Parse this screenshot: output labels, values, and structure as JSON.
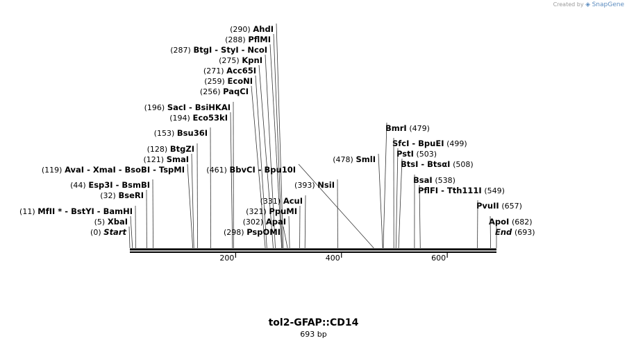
{
  "credit": {
    "prefix": "Created by",
    "brand": "SnapGene"
  },
  "title": "tol2-GFAP::CD14",
  "length_label": "693 bp",
  "sequence_length": 693,
  "axis_ticks": [
    "200",
    "400",
    "600"
  ],
  "axis_tick_values": [
    200,
    400,
    600
  ],
  "sites_left": [
    {
      "pos_label": "(290)",
      "pos": 290,
      "names": [
        "AhdI"
      ]
    },
    {
      "pos_label": "(288)",
      "pos": 288,
      "names": [
        "PflMI"
      ]
    },
    {
      "pos_label": "(287)",
      "pos": 287,
      "names": [
        "BtgI",
        "StyI",
        "NcoI"
      ]
    },
    {
      "pos_label": "(275)",
      "pos": 275,
      "names": [
        "KpnI"
      ]
    },
    {
      "pos_label": "(271)",
      "pos": 271,
      "names": [
        "Acc65I"
      ]
    },
    {
      "pos_label": "(259)",
      "pos": 259,
      "names": [
        "EcoNI"
      ]
    },
    {
      "pos_label": "(256)",
      "pos": 256,
      "names": [
        "PaqCI"
      ]
    },
    {
      "pos_label": "(196)",
      "pos": 196,
      "names": [
        "SacI",
        "BsiHKAI"
      ]
    },
    {
      "pos_label": "(194)",
      "pos": 194,
      "names": [
        "Eco53kI"
      ]
    },
    {
      "pos_label": "(153)",
      "pos": 153,
      "names": [
        "Bsu36I"
      ]
    },
    {
      "pos_label": "(128)",
      "pos": 128,
      "names": [
        "BtgZI"
      ]
    },
    {
      "pos_label": "(121)",
      "pos": 121,
      "names": [
        "SmaI"
      ]
    },
    {
      "pos_label": "(119)",
      "pos": 119,
      "names": [
        "AvaI",
        "XmaI",
        "BsoBI",
        "TspMI"
      ]
    },
    {
      "pos_label": "(44)",
      "pos": 44,
      "names": [
        "Esp3I",
        "BsmBI"
      ]
    },
    {
      "pos_label": "(32)",
      "pos": 32,
      "names": [
        "BseRI"
      ]
    },
    {
      "pos_label": "(11)",
      "pos": 11,
      "names": [
        "MfII *",
        "BstYI",
        "BamHI"
      ]
    },
    {
      "pos_label": "(5)",
      "pos": 5,
      "names": [
        "XbaI"
      ]
    },
    {
      "pos_label": "(0)",
      "pos": 0,
      "names": [
        "Start"
      ]
    },
    {
      "pos_label": "(461)",
      "pos": 461,
      "names": [
        "BbvCI",
        "Bpu10I"
      ]
    },
    {
      "pos_label": "(393)",
      "pos": 393,
      "names": [
        "NsiI"
      ]
    },
    {
      "pos_label": "(331)",
      "pos": 331,
      "names": [
        "AcuI"
      ]
    },
    {
      "pos_label": "(321)",
      "pos": 321,
      "names": [
        "PpuMI"
      ]
    },
    {
      "pos_label": "(302)",
      "pos": 302,
      "names": [
        "ApaI"
      ]
    },
    {
      "pos_label": "(298)",
      "pos": 298,
      "names": [
        "PspOMI"
      ]
    },
    {
      "pos_label": "(478)",
      "pos": 478,
      "names": [
        "SmlI"
      ]
    }
  ],
  "sites_right": [
    {
      "pos_label": "(479)",
      "pos": 479,
      "names": [
        "BmrI"
      ]
    },
    {
      "pos_label": "(499)",
      "pos": 499,
      "names": [
        "SfcI",
        "BpuEI"
      ]
    },
    {
      "pos_label": "(503)",
      "pos": 503,
      "names": [
        "PstI"
      ]
    },
    {
      "pos_label": "(508)",
      "pos": 508,
      "names": [
        "BtsI",
        "BtsαI"
      ]
    },
    {
      "pos_label": "(538)",
      "pos": 538,
      "names": [
        "BsaI"
      ]
    },
    {
      "pos_label": "(549)",
      "pos": 549,
      "names": [
        "PflFI",
        "Tth111I"
      ]
    },
    {
      "pos_label": "(657)",
      "pos": 657,
      "names": [
        "PvuII"
      ]
    },
    {
      "pos_label": "(682)",
      "pos": 682,
      "names": [
        "ApoI"
      ]
    },
    {
      "pos_label": "(693)",
      "pos": 693,
      "names": [
        "End"
      ]
    }
  ]
}
